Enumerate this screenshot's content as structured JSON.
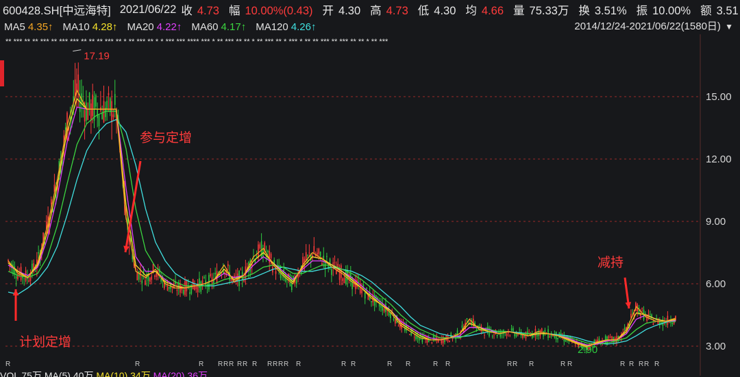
{
  "header": {
    "code_name": "600428.SH[中远海特]",
    "date": "2021/06/22",
    "close_label": "收",
    "close_value": "4.73",
    "change_label": "幅",
    "change_value": "10.00%(0.43)",
    "open_label": "开",
    "open_value": "4.30",
    "high_label": "高",
    "high_value": "4.73",
    "low_label": "低",
    "low_value": "4.30",
    "avg_label": "均",
    "avg_value": "4.66",
    "volume_label": "量",
    "volume_value": "75.33万",
    "turnover_label": "换",
    "turnover_value": "3.51%",
    "amplitude_label": "振",
    "amplitude_value": "10.00%",
    "amount_label": "额",
    "amount_value": "3.51"
  },
  "ma_bar": {
    "items": [
      {
        "label": "MA5",
        "value": "4.35↑",
        "color": "#f5a623"
      },
      {
        "label": "MA10",
        "value": "4.28↑",
        "color": "#f5e12b"
      },
      {
        "label": "MA20",
        "value": "4.22↑",
        "color": "#e040fb"
      },
      {
        "label": "MA60",
        "value": "4.17↑",
        "color": "#3cd640"
      },
      {
        "label": "MA120",
        "value": "4.26↑",
        "color": "#40e0e0"
      }
    ],
    "range": "2014/12/24-2021/06/22(1580日)",
    "dropdown_icon": "triangle-down-icon"
  },
  "annotations": {
    "peak_label": "17.19",
    "low_label": "2.90",
    "plan_text": "计划定增",
    "participate_text": "参与定增",
    "reduce_text": "减持"
  },
  "volume_bar": {
    "text1": "VOL",
    "text2": "75万",
    "text3": "MA(5)",
    "text4": "40万",
    "text5": "MA(10)",
    "text6": "34万",
    "text7": "MA(20)",
    "text8": "36万"
  },
  "colors": {
    "up": "#ff3b3b",
    "down": "#2ecc40",
    "background": "#17181b",
    "grid": "#c83030"
  },
  "chart_data": {
    "type": "line",
    "title": "",
    "xlabel": "",
    "ylabel": "",
    "x_range": [
      "2014/12/24",
      "2021/06/22"
    ],
    "ylim": [
      2.6,
      17.8
    ],
    "yticks": [
      "15.00",
      "12.00",
      "9.00",
      "6.00",
      "3.00"
    ],
    "ytick_values": [
      15,
      12,
      9,
      6,
      3
    ],
    "series": [
      {
        "name": "MA5",
        "color": "#f5a623",
        "values": [
          7.1,
          6.5,
          6.3,
          7.0,
          8.8,
          11.0,
          13.6,
          15.3,
          14.4,
          14.4,
          14.4,
          14.4,
          9.2,
          6.6,
          6.3,
          6.7,
          6.0,
          5.8,
          5.8,
          5.9,
          6.0,
          6.2,
          6.9,
          6.1,
          6.4,
          7.3,
          7.7,
          6.9,
          6.4,
          6.0,
          6.9,
          7.5,
          7.2,
          6.8,
          6.5,
          6.1,
          5.8,
          5.3,
          5.0,
          4.6,
          4.0,
          3.7,
          3.4,
          3.3,
          3.3,
          3.4,
          3.6,
          4.3,
          3.8,
          3.7,
          3.6,
          3.7,
          3.6,
          3.5,
          3.7,
          3.6,
          3.5,
          3.3,
          3.1,
          2.95,
          3.2,
          3.3,
          3.3,
          3.8,
          4.9,
          4.4,
          4.2,
          4.2,
          4.35
        ]
      },
      {
        "name": "MA10",
        "color": "#f5e12b",
        "values": [
          7.0,
          6.6,
          6.3,
          6.9,
          8.5,
          10.7,
          13.3,
          14.9,
          14.4,
          14.4,
          14.4,
          14.4,
          9.8,
          6.9,
          6.4,
          6.6,
          6.1,
          5.9,
          5.8,
          5.9,
          6.0,
          6.2,
          6.7,
          6.2,
          6.4,
          7.1,
          7.5,
          7.0,
          6.5,
          6.1,
          6.8,
          7.3,
          7.2,
          6.9,
          6.6,
          6.2,
          5.8,
          5.4,
          5.0,
          4.7,
          4.1,
          3.8,
          3.5,
          3.3,
          3.3,
          3.4,
          3.6,
          4.1,
          3.9,
          3.7,
          3.6,
          3.7,
          3.6,
          3.5,
          3.6,
          3.6,
          3.5,
          3.35,
          3.15,
          3.0,
          3.15,
          3.3,
          3.3,
          3.7,
          4.6,
          4.5,
          4.3,
          4.2,
          4.28
        ]
      },
      {
        "name": "MA20",
        "color": "#e040fb",
        "values": [
          6.9,
          6.6,
          6.4,
          6.8,
          8.2,
          10.2,
          12.8,
          14.5,
          14.4,
          14.4,
          14.4,
          14.4,
          10.6,
          7.3,
          6.6,
          6.6,
          6.2,
          5.9,
          5.8,
          5.9,
          6.0,
          6.2,
          6.5,
          6.3,
          6.4,
          6.9,
          7.3,
          7.0,
          6.6,
          6.2,
          6.7,
          7.1,
          7.1,
          6.9,
          6.6,
          6.3,
          5.9,
          5.5,
          5.1,
          4.7,
          4.2,
          3.9,
          3.6,
          3.4,
          3.3,
          3.4,
          3.5,
          3.9,
          3.9,
          3.8,
          3.6,
          3.7,
          3.6,
          3.5,
          3.6,
          3.6,
          3.5,
          3.4,
          3.2,
          3.05,
          3.1,
          3.25,
          3.3,
          3.6,
          4.3,
          4.5,
          4.3,
          4.2,
          4.22
        ]
      },
      {
        "name": "MA60",
        "color": "#3cd640",
        "values": [
          6.6,
          6.4,
          6.3,
          6.5,
          7.3,
          8.8,
          10.8,
          12.7,
          13.7,
          14.1,
          14.3,
          14.3,
          12.5,
          9.6,
          7.6,
          6.8,
          6.4,
          6.1,
          5.9,
          5.9,
          5.9,
          6.0,
          6.2,
          6.3,
          6.3,
          6.5,
          6.8,
          6.9,
          6.8,
          6.5,
          6.5,
          6.7,
          6.9,
          6.9,
          6.7,
          6.5,
          6.2,
          5.8,
          5.4,
          5.0,
          4.5,
          4.1,
          3.8,
          3.6,
          3.4,
          3.4,
          3.4,
          3.6,
          3.8,
          3.8,
          3.7,
          3.7,
          3.6,
          3.6,
          3.6,
          3.6,
          3.5,
          3.45,
          3.3,
          3.15,
          3.1,
          3.15,
          3.25,
          3.4,
          3.8,
          4.1,
          4.2,
          4.2,
          4.17
        ]
      },
      {
        "name": "MA120",
        "color": "#40e0e0",
        "values": [
          5.6,
          5.5,
          5.8,
          6.2,
          6.8,
          7.8,
          9.3,
          11.0,
          12.4,
          13.2,
          13.7,
          13.9,
          13.3,
          11.7,
          9.6,
          8.0,
          7.1,
          6.5,
          6.2,
          6.0,
          5.9,
          5.9,
          6.0,
          6.1,
          6.2,
          6.3,
          6.5,
          6.7,
          6.8,
          6.7,
          6.6,
          6.6,
          6.7,
          6.8,
          6.7,
          6.6,
          6.4,
          6.1,
          5.7,
          5.3,
          4.9,
          4.4,
          4.0,
          3.8,
          3.6,
          3.5,
          3.45,
          3.5,
          3.6,
          3.7,
          3.7,
          3.7,
          3.65,
          3.6,
          3.6,
          3.6,
          3.55,
          3.5,
          3.4,
          3.25,
          3.15,
          3.1,
          3.15,
          3.25,
          3.5,
          3.8,
          4.0,
          4.15,
          4.26
        ]
      }
    ],
    "annotations": [
      {
        "text": "17.19",
        "type": "high"
      },
      {
        "text": "2.90",
        "type": "low"
      }
    ],
    "grid": true
  }
}
